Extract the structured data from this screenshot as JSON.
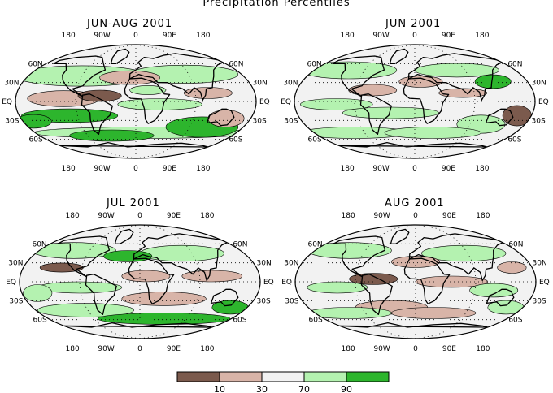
{
  "figure_title": "Precipitation Percentiles",
  "panels": [
    {
      "id": "jja",
      "title": "JUN-AUG 2001"
    },
    {
      "id": "jun",
      "title": "JUN 2001"
    },
    {
      "id": "jul",
      "title": "JUL 2001"
    },
    {
      "id": "aug",
      "title": "AUG 2001"
    }
  ],
  "longitude_labels": [
    "180",
    "90W",
    "0",
    "90E",
    "180"
  ],
  "latitude_labels": [
    "60N",
    "30N",
    "EQ",
    "30S",
    "60S"
  ],
  "legend": {
    "boundaries": [
      "10",
      "30",
      "70",
      "90"
    ],
    "colors": [
      "#7b5a4d",
      "#d8b4a8",
      "#f2f2f2",
      "#b4f2b0",
      "#2db52d"
    ]
  },
  "colors": {
    "far_below": "#7b5a4d",
    "below": "#d8b4a8",
    "near_normal": "#f2f2f2",
    "above": "#b4f2b0",
    "far_above": "#2db52d"
  }
}
